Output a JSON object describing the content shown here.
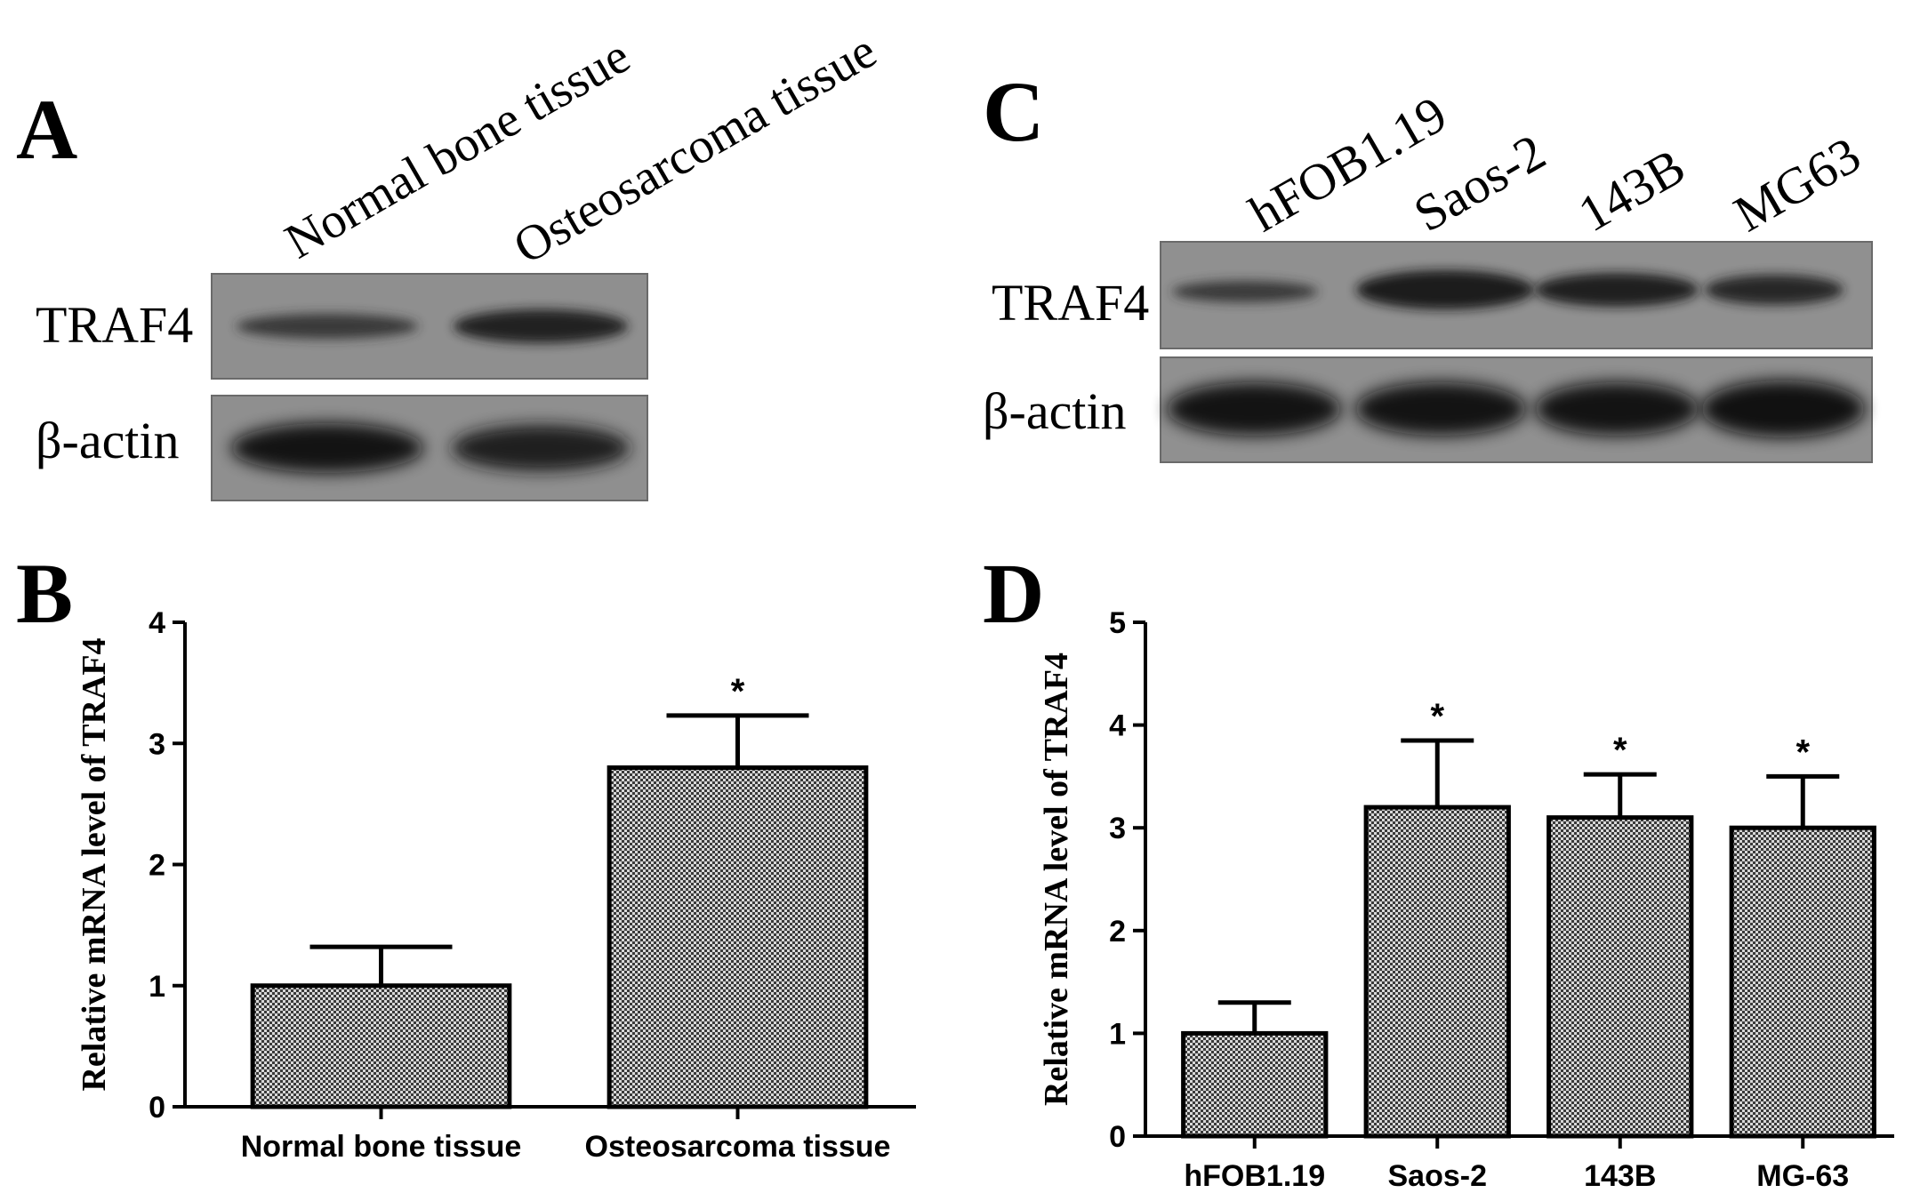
{
  "panels": {
    "A": {
      "letter": "A",
      "lanes": [
        "Normal bone tissue",
        "Osteosarcoma tissue"
      ],
      "rows": [
        "TRAF4",
        "β-actin"
      ]
    },
    "C": {
      "letter": "C",
      "lanes": [
        "hFOB1.19",
        "Saos-2",
        "143B",
        "MG63"
      ],
      "rows": [
        "TRAF4",
        "β-actin"
      ]
    }
  },
  "chart_data": [
    {
      "panel": "B",
      "type": "bar",
      "title": "",
      "xlabel": "",
      "ylabel": "Relative mRNA level of TRAF4",
      "categories": [
        "Normal bone tissue",
        "Osteosarcoma tissue"
      ],
      "values": [
        1.0,
        2.8
      ],
      "error": [
        0.32,
        0.43
      ],
      "significance": [
        "",
        "*"
      ],
      "ylim": [
        0,
        4
      ],
      "yticks": [
        0,
        1,
        2,
        3,
        4
      ],
      "fill": "#8a8a8a",
      "grid": false
    },
    {
      "panel": "D",
      "type": "bar",
      "title": "",
      "xlabel": "",
      "ylabel": "Relative mRNA level of TRAF4",
      "categories": [
        "hFOB1.19",
        "Saos-2",
        "143B",
        "MG-63"
      ],
      "values": [
        1.0,
        3.2,
        3.1,
        3.0
      ],
      "error": [
        0.3,
        0.65,
        0.42,
        0.5
      ],
      "significance": [
        "",
        "*",
        "*",
        "*"
      ],
      "ylim": [
        0,
        5
      ],
      "yticks": [
        0,
        1,
        2,
        3,
        4,
        5
      ],
      "fill": "#8a8a8a",
      "grid": false
    }
  ]
}
